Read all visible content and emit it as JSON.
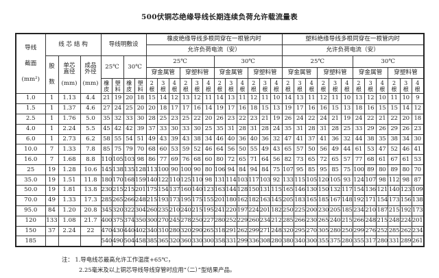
{
  "title": "500伏铜芯绝缘导线长期连续负荷允许载流量表",
  "header": {
    "section": "导线",
    "section2": "截面",
    "section_unit": "(mm²)",
    "core_structure": "线 芯 结 构",
    "strands_1": "股",
    "strands_2": "数",
    "core_diameter": "单芯",
    "core_diameter_2": "直径",
    "core_diameter_unit": "(mm)",
    "outer_diameter": "成品",
    "outer_diameter_2": "外径",
    "outer_diameter_unit": "(mm)",
    "open_laying": "导线明敷设",
    "rubber_group": "橡皮绝缘导线多根同穿在一根管内时",
    "plastic_group": "塑料绝缘导线多根同穿在一根管内时",
    "allowed_current": "允许负荷电流（安）",
    "t25": "25℃",
    "t30": "30℃",
    "metal_pipe": "穿金属管",
    "plastic_pipe": "穿塑料管",
    "rubber": [
      "橡",
      "皮"
    ],
    "plastic": [
      "塑",
      "料"
    ],
    "n2": [
      "2",
      "根"
    ],
    "n3": [
      "3",
      "根"
    ],
    "n4": [
      "4",
      "根"
    ]
  },
  "rows": [
    {
      "section": "1.0",
      "strands": "1",
      "core": "1.13",
      "outer": "4.4",
      "open": [
        21,
        19,
        20,
        18
      ],
      "rubber": [
        15,
        14,
        12,
        13,
        12,
        11,
        14,
        13,
        11,
        12,
        11,
        10
      ],
      "plastic": [
        14,
        13,
        11,
        12,
        11,
        10,
        13,
        12,
        10,
        11,
        10,
        9
      ]
    },
    {
      "section": "1.5",
      "strands": "1",
      "core": "1.37",
      "outer": "4.6",
      "open": [
        27,
        24,
        25,
        20
      ],
      "rubber": [
        20,
        18,
        17,
        17,
        16,
        14,
        19,
        17,
        16,
        18,
        15,
        13
      ],
      "plastic": [
        19,
        17,
        16,
        16,
        15,
        13,
        18,
        16,
        15,
        15,
        14,
        12
      ]
    },
    {
      "section": "2.5",
      "strands": "1",
      "core": "1.76",
      "outer": "5.0",
      "open": [
        35,
        32,
        33,
        30
      ],
      "rubber": [
        28,
        25,
        23,
        25,
        22,
        20,
        26,
        23,
        22,
        23,
        21,
        19
      ],
      "plastic": [
        26,
        24,
        22,
        24,
        21,
        19,
        24,
        22,
        21,
        22,
        20,
        18
      ]
    },
    {
      "section": "4.0",
      "strands": "1",
      "core": "2.24",
      "outer": "5.5",
      "open": [
        45,
        42,
        42,
        39
      ],
      "rubber": [
        37,
        33,
        30,
        33,
        30,
        25,
        35,
        31,
        28,
        31,
        28,
        24
      ],
      "plastic": [
        35,
        31,
        28,
        31,
        28,
        25,
        33,
        29,
        26,
        29,
        26,
        23
      ]
    },
    {
      "section": "6.0",
      "strands": "1",
      "core": "2.73",
      "outer": "6.2",
      "open": [
        58,
        55,
        54,
        51
      ],
      "rubber": [
        49,
        43,
        39,
        43,
        38,
        34,
        46,
        40,
        36,
        40,
        36,
        32
      ],
      "plastic": [
        47,
        41,
        37,
        41,
        36,
        32,
        44,
        38,
        35,
        38,
        34,
        30
      ]
    },
    {
      "section": "10.0",
      "strands": "7",
      "core": "1.33",
      "outer": "7.8",
      "open": [
        85,
        75,
        79,
        70
      ],
      "rubber": [
        68,
        60,
        53,
        59,
        52,
        46,
        64,
        56,
        50,
        55,
        49,
        43
      ],
      "plastic": [
        65,
        57,
        50,
        56,
        49,
        44,
        61,
        53,
        47,
        52,
        46,
        41
      ]
    },
    {
      "section": "16.0",
      "strands": "7",
      "core": "1.68",
      "outer": "8.8",
      "open": [
        110,
        105,
        103,
        98
      ],
      "rubber": [
        86,
        77,
        69,
        76,
        68,
        60,
        80,
        72,
        65,
        71,
        64,
        56
      ],
      "plastic": [
        82,
        73,
        65,
        72,
        65,
        57,
        77,
        68,
        61,
        67,
        61,
        53
      ]
    },
    {
      "section": "25",
      "strands": "19",
      "core": "1.28",
      "outer": "10.6",
      "open": [
        145,
        138,
        135,
        128
      ],
      "rubber": [
        113,
        100,
        90,
        100,
        90,
        80,
        106,
        94,
        84,
        94,
        84,
        75
      ],
      "plastic": [
        107,
        95,
        85,
        95,
        85,
        75,
        100,
        89,
        80,
        89,
        80,
        70
      ]
    },
    {
      "section": "35.0",
      "strands": "19",
      "core": "1.51",
      "outer": "11.8",
      "open": [
        180,
        170,
        168,
        159
      ],
      "rubber": [
        140,
        122,
        110,
        125,
        110,
        98,
        131,
        114,
        103,
        117,
        103,
        92
      ],
      "plastic": [
        133,
        115,
        105,
        120,
        105,
        93,
        124,
        107,
        98,
        112,
        98,
        87
      ]
    },
    {
      "section": "50.0",
      "strands": "19",
      "core": "1.81",
      "outer": "13.8",
      "open": [
        230,
        215,
        215,
        201
      ],
      "rubber": [
        175,
        154,
        137,
        160,
        140,
        123,
        163,
        144,
        128,
        150,
        131,
        115
      ],
      "plastic": [
        165,
        146,
        130,
        150,
        132,
        117,
        154,
        136,
        121,
        140,
        123,
        109
      ]
    },
    {
      "section": "70.0",
      "strands": "49",
      "core": "1.33",
      "outer": "17.3",
      "open": [
        285,
        265,
        266,
        248
      ],
      "rubber": [
        215,
        193,
        173,
        195,
        175,
        155,
        201,
        180,
        162,
        182,
        163,
        145
      ],
      "plastic": [
        205,
        183,
        165,
        185,
        167,
        148,
        192,
        171,
        154,
        173,
        156,
        138
      ]
    },
    {
      "section": "95.0",
      "strands": "84",
      "core": "1.20",
      "outer": "20.8",
      "open": [
        345,
        320,
        322,
        304
      ],
      "rubber": [
        260,
        235,
        210,
        240,
        215,
        195,
        241,
        220,
        197,
        224,
        201,
        182
      ],
      "plastic": [
        250,
        225,
        200,
        230,
        205,
        185,
        234,
        210,
        187,
        215,
        192,
        173
      ]
    },
    {
      "section": "120",
      "strands": "133",
      "core": "1.08",
      "outer": "21.7",
      "open": [
        400,
        375,
        374,
        350
      ],
      "rubber": [
        300,
        270,
        245,
        278,
        250,
        227,
        280,
        252,
        229,
        260,
        234,
        212
      ],
      "plastic": [
        285,
        266,
        230,
        265,
        240,
        215,
        266,
        248,
        215,
        248,
        224,
        201
      ]
    },
    {
      "section": "150",
      "strands": "37",
      "core": "2.24",
      "outer": "22",
      "open": [
        470,
        430,
        440,
        402
      ],
      "rubber": [
        340,
        310,
        280,
        320,
        290,
        265,
        318,
        291,
        262,
        299,
        271,
        248
      ],
      "plastic": [
        320,
        295,
        270,
        305,
        280,
        250,
        299,
        276,
        252,
        285,
        262,
        234
      ]
    },
    {
      "section": "185",
      "strands": "",
      "core": "",
      "outer": "",
      "open": [
        540,
        490,
        504,
        458
      ],
      "rubber": [
        385,
        365,
        320,
        360,
        330,
        300,
        358,
        331,
        299,
        336,
        308,
        280
      ],
      "plastic": [
        380,
        340,
        300,
        355,
        375,
        280,
        355,
        317,
        280,
        331,
        289,
        261
      ]
    }
  ],
  "notes": {
    "label": "注：",
    "note1": "1.导电线芯最高允许工作温度+65℃，",
    "note2": "2.25毫米及以上铜芯导线导线穿管时应用“（二）”型结果产品。"
  }
}
